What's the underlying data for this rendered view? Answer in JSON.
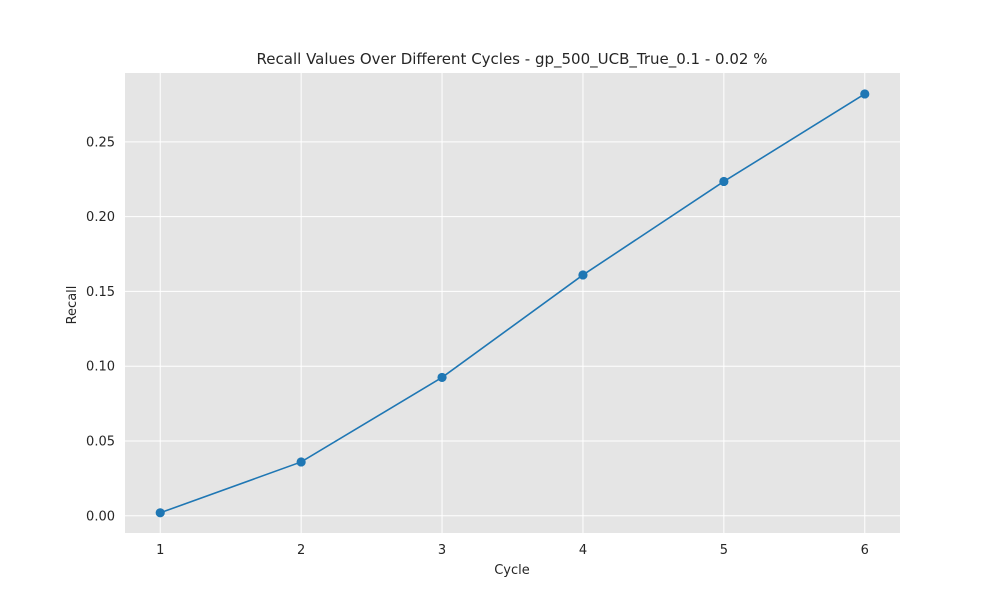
{
  "chart_data": {
    "type": "line",
    "title": "Recall Values Over Different Cycles - gp_500_UCB_True_0.1 - 0.02 %",
    "xlabel": "Cycle",
    "ylabel": "Recall",
    "x": [
      1,
      2,
      3,
      4,
      5,
      6
    ],
    "series": [
      {
        "values": [
          0.002,
          0.036,
          0.0925,
          0.161,
          0.2235,
          0.282
        ]
      }
    ],
    "xticks": [
      1,
      2,
      3,
      4,
      5,
      6
    ],
    "yticks": [
      0.0,
      0.05,
      0.1,
      0.15,
      0.2,
      0.25
    ],
    "xlim": [
      0.75,
      6.25
    ],
    "ylim": [
      -0.0115,
      0.296
    ],
    "grid": true,
    "colors": {
      "plot_background": "#e5e5e5",
      "grid": "#ffffff",
      "line": "#1f77b4",
      "text": "#262626"
    }
  }
}
